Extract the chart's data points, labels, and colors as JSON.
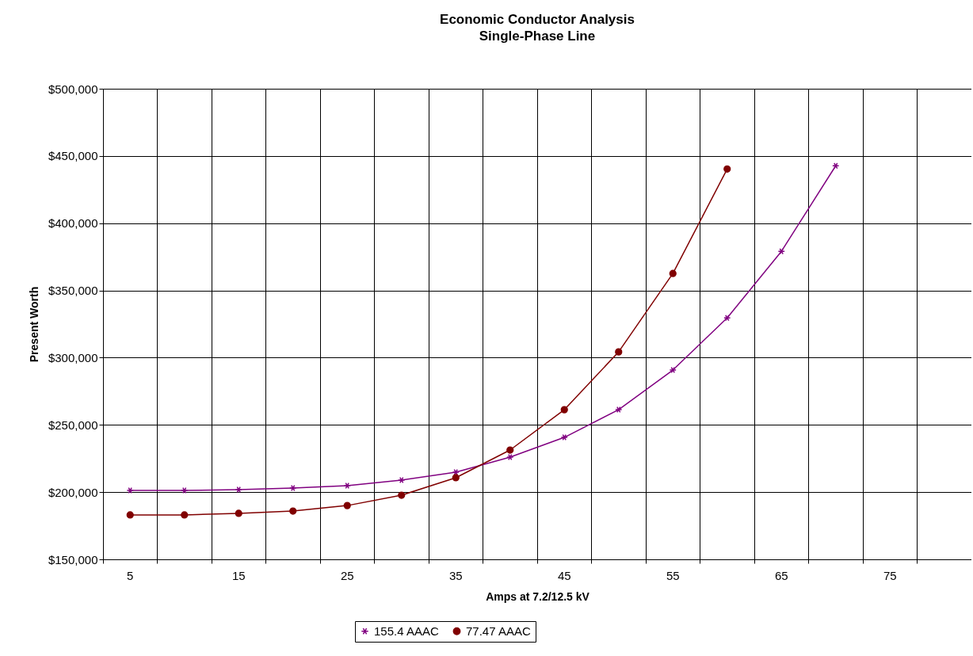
{
  "chart_data": {
    "type": "line",
    "title": "Economic Conductor Analysis",
    "subtitle": "Single-Phase Line",
    "xlabel": "Amps at 7.2/12.5 kV",
    "ylabel": "Present Worth",
    "categories": [
      "5",
      null,
      "15",
      null,
      "25",
      null,
      "35",
      null,
      "45",
      null,
      "55",
      null,
      "65",
      null,
      "75",
      null
    ],
    "series": [
      {
        "name": "155.4 AAAC",
        "color": "#800080",
        "marker": "cross",
        "values": [
          201200,
          201200,
          201800,
          203000,
          204800,
          208900,
          214800,
          226000,
          240700,
          261300,
          290800,
          329600,
          379100,
          442700,
          null,
          null
        ]
      },
      {
        "name": "77.47 AAAC",
        "color": "#800000",
        "marker": "circle",
        "values": [
          183000,
          183000,
          184200,
          185900,
          190000,
          197700,
          210700,
          231300,
          261300,
          304300,
          362600,
          440300,
          null,
          null,
          null,
          null
        ]
      }
    ],
    "ylim": [
      150000,
      500000
    ],
    "yticks": [
      {
        "value": 150000,
        "label": "$150,000"
      },
      {
        "value": 200000,
        "label": "$200,000"
      },
      {
        "value": 250000,
        "label": "$250,000"
      },
      {
        "value": 300000,
        "label": "$300,000"
      },
      {
        "value": 350000,
        "label": "$350,000"
      },
      {
        "value": 400000,
        "label": "$400,000"
      },
      {
        "value": 450000,
        "label": "$450,000"
      },
      {
        "value": 500000,
        "label": "$500,000"
      }
    ],
    "grid": true,
    "legend": "bottom"
  }
}
